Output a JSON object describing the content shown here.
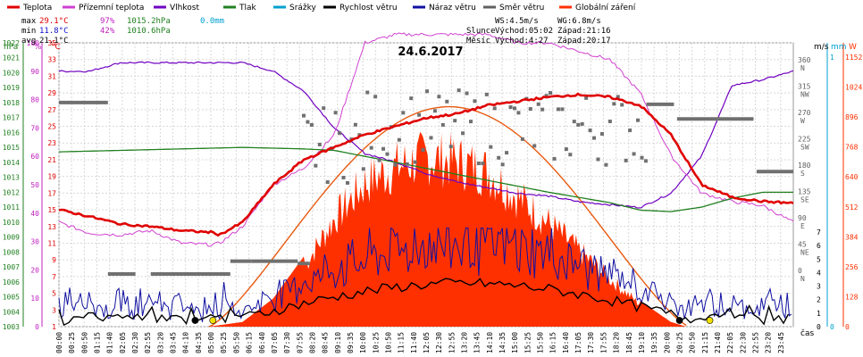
{
  "chart_data": {
    "type": "line",
    "title": "24.6.2017",
    "legend": [
      {
        "label": "Teplota",
        "color": "#e00000"
      },
      {
        "label": "Přízemní teplota",
        "color": "#d040d0"
      },
      {
        "label": "Vlhkost",
        "color": "#7000c0"
      },
      {
        "label": "Tlak",
        "color": "#208020"
      },
      {
        "label": "Srážky",
        "color": "#00a0d0"
      },
      {
        "label": "Rychlost větru",
        "color": "#000000"
      },
      {
        "label": "Náraz větru",
        "color": "#1010a0"
      },
      {
        "label": "Směr větru",
        "color": "#606060"
      },
      {
        "label": "Globální záření",
        "color": "#ff3000"
      }
    ],
    "stats": {
      "max_label": "max",
      "max_temp": "29.1°C",
      "max_hum": "97%",
      "max_press": "1015.2hPa",
      "max_rain": "0.0mm",
      "min_label": "min",
      "min_temp": "11.8°C",
      "min_hum": "42%",
      "min_press": "1010.6hPa",
      "avg_label": "avg",
      "avg_temp": "21.1°C"
    },
    "wind_info": {
      "ws": "WS:4.5m/s",
      "wg": "WG:6.8m/s"
    },
    "sun_info": {
      "label": "Slunce",
      "sunrise": "Východ:05:02",
      "sunset": "Západ:21:16"
    },
    "moon_info": {
      "label": "Měsíc",
      "moonrise": "Východ:4:27",
      "moonset": "Západ:20:17"
    },
    "axis_units": {
      "hpa": "hPa",
      "pct": "%",
      "degc": "°C",
      "ms": "m/s",
      "mm": "mm",
      "wm2": "W",
      "time": "čas"
    },
    "axis_hpa": [
      "1003",
      "1004",
      "1005",
      "1006",
      "1007",
      "1008",
      "1009",
      "1010",
      "1011",
      "1012",
      "1013",
      "1014",
      "1015",
      "1016",
      "1017",
      "1018",
      "1019",
      "1020",
      "1021",
      "1022"
    ],
    "axis_pct": [
      "0",
      "10",
      "20",
      "30",
      "40",
      "50",
      "60",
      "70",
      "80",
      "90",
      "100"
    ],
    "axis_degc": [
      "1",
      "3",
      "5",
      "7",
      "9",
      "11",
      "13",
      "15",
      "17",
      "19",
      "21",
      "23",
      "25",
      "27",
      "29",
      "31",
      "33",
      "35"
    ],
    "axis_dir": [
      {
        "deg": "0",
        "dir": "N"
      },
      {
        "deg": "45",
        "dir": "NE"
      },
      {
        "deg": "90",
        "dir": "E"
      },
      {
        "deg": "135",
        "dir": "SE"
      },
      {
        "deg": "180",
        "dir": "S"
      },
      {
        "deg": "225",
        "dir": "SW"
      },
      {
        "deg": "270",
        "dir": "W"
      },
      {
        "deg": "315",
        "dir": "NW"
      },
      {
        "deg": "360",
        "dir": "N"
      }
    ],
    "axis_ms": [
      "0",
      "1",
      "2",
      "3",
      "4",
      "5",
      "6",
      "7"
    ],
    "axis_mm": [
      "0",
      "1"
    ],
    "axis_wm2": [
      "0",
      "128",
      "256",
      "384",
      "512",
      "640",
      "768",
      "896",
      "1024",
      "1152"
    ],
    "x_ticks": [
      "00:00",
      "00:25",
      "00:50",
      "01:15",
      "01:40",
      "02:05",
      "02:30",
      "02:55",
      "03:20",
      "03:45",
      "04:10",
      "04:35",
      "05:00",
      "05:25",
      "05:50",
      "06:15",
      "06:40",
      "07:05",
      "07:30",
      "07:55",
      "08:20",
      "08:45",
      "09:10",
      "09:35",
      "10:00",
      "10:25",
      "10:50",
      "11:15",
      "11:40",
      "12:05",
      "12:30",
      "12:55",
      "13:20",
      "13:45",
      "14:10",
      "14:35",
      "15:00",
      "15:25",
      "15:50",
      "16:15",
      "16:40",
      "17:05",
      "17:30",
      "17:55",
      "18:20",
      "18:45",
      "19:10",
      "19:35",
      "20:00",
      "20:25",
      "20:50",
      "21:15",
      "21:40",
      "22:05",
      "22:30",
      "22:55",
      "23:20",
      "23:45"
    ],
    "series": [
      {
        "name": "Teplota",
        "unit": "°C",
        "points": [
          [
            0,
            15
          ],
          [
            1,
            14.2
          ],
          [
            2,
            13.3
          ],
          [
            3,
            13
          ],
          [
            4,
            12.5
          ],
          [
            5,
            12.3
          ],
          [
            5.25,
            12
          ],
          [
            6,
            13.5
          ],
          [
            7,
            18
          ],
          [
            8,
            21
          ],
          [
            9,
            22.5
          ],
          [
            10,
            24
          ],
          [
            11,
            25
          ],
          [
            12,
            26
          ],
          [
            13,
            26.5
          ],
          [
            14,
            27.5
          ],
          [
            15,
            28
          ],
          [
            16,
            28.5
          ],
          [
            17,
            28.8
          ],
          [
            18,
            28.5
          ],
          [
            19,
            27.5
          ],
          [
            20,
            24
          ],
          [
            21,
            18
          ],
          [
            22,
            16.5
          ],
          [
            23,
            16
          ],
          [
            24,
            15.8
          ]
        ]
      },
      {
        "name": "Přízemní teplota",
        "unit": "°C",
        "points": [
          [
            0,
            13.5
          ],
          [
            1,
            12.2
          ],
          [
            2,
            12
          ],
          [
            3,
            12.5
          ],
          [
            4,
            11
          ],
          [
            5,
            10.8
          ],
          [
            5.25,
            11
          ],
          [
            6,
            13
          ],
          [
            7,
            18
          ],
          [
            8,
            20
          ],
          [
            9,
            24
          ],
          [
            10,
            35
          ],
          [
            11,
            36
          ],
          [
            12,
            36
          ],
          [
            13,
            36
          ],
          [
            14,
            36
          ],
          [
            15,
            35
          ],
          [
            16,
            35
          ],
          [
            17,
            34
          ],
          [
            18,
            33
          ],
          [
            19,
            29
          ],
          [
            20,
            21.5
          ],
          [
            21,
            17
          ],
          [
            22,
            16
          ],
          [
            23,
            15.5
          ],
          [
            24,
            13.5
          ]
        ]
      },
      {
        "name": "Vlhkost",
        "unit": "%",
        "points": [
          [
            0,
            90
          ],
          [
            1,
            90
          ],
          [
            2,
            93
          ],
          [
            3,
            93
          ],
          [
            4,
            93
          ],
          [
            5,
            93
          ],
          [
            6,
            93
          ],
          [
            7,
            90
          ],
          [
            8,
            83
          ],
          [
            9,
            70
          ],
          [
            10,
            61
          ],
          [
            11,
            58
          ],
          [
            12,
            54
          ],
          [
            13,
            51
          ],
          [
            14,
            49
          ],
          [
            15,
            47
          ],
          [
            16,
            46
          ],
          [
            17,
            44
          ],
          [
            18,
            43
          ],
          [
            19,
            42
          ],
          [
            20,
            47
          ],
          [
            21,
            60
          ],
          [
            22,
            85
          ],
          [
            23,
            87
          ],
          [
            24,
            90
          ]
        ]
      },
      {
        "name": "Tlak",
        "unit": "hPa",
        "points": [
          [
            0,
            1014.7
          ],
          [
            2,
            1014.8
          ],
          [
            4,
            1014.9
          ],
          [
            6,
            1015
          ],
          [
            8,
            1014.9
          ],
          [
            9,
            1014.8
          ],
          [
            10,
            1014.4
          ],
          [
            12,
            1013.6
          ],
          [
            14,
            1012.8
          ],
          [
            16,
            1012
          ],
          [
            18,
            1011.3
          ],
          [
            19,
            1010.8
          ],
          [
            20,
            1010.7
          ],
          [
            21,
            1011
          ],
          [
            22,
            1011.6
          ],
          [
            23,
            1012
          ],
          [
            24,
            1012
          ]
        ]
      },
      {
        "name": "Globální záření",
        "unit": "W/m²",
        "points": [
          [
            4.9,
            0
          ],
          [
            6,
            20
          ],
          [
            7,
            120
          ],
          [
            8,
            300
          ],
          [
            9,
            540
          ],
          [
            10,
            720
          ],
          [
            11,
            800
          ],
          [
            12,
            850
          ],
          [
            13,
            830
          ],
          [
            14,
            780
          ],
          [
            15,
            650
          ],
          [
            16,
            520
          ],
          [
            17,
            380
          ],
          [
            18,
            240
          ],
          [
            19,
            110
          ],
          [
            20,
            20
          ],
          [
            20.5,
            0
          ]
        ]
      }
    ],
    "sun_markers": [
      {
        "hour": 4.45,
        "color": "#000000"
      },
      {
        "hour": 5.03,
        "color": "#f0e000"
      },
      {
        "hour": 20.28,
        "color": "#000000"
      },
      {
        "hour": 21.27,
        "color": "#f0e000"
      }
    ]
  }
}
